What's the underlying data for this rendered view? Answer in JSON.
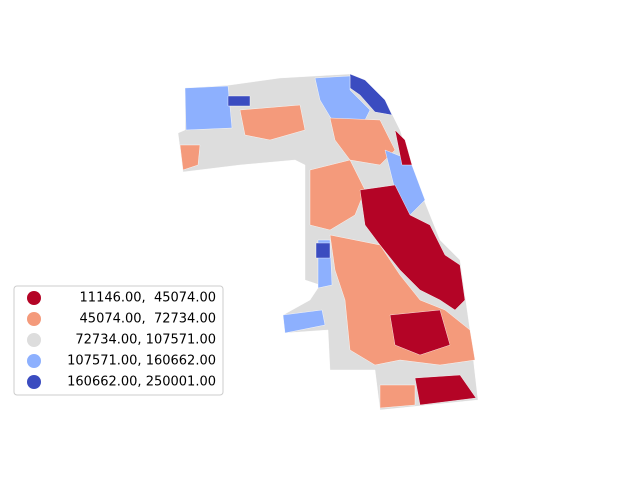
{
  "legend": {
    "items": [
      {
        "label": "11146.00,  45074.00",
        "color": "#b40426"
      },
      {
        "label": "45074.00,  72734.00",
        "color": "#f49a7b"
      },
      {
        "label": "72734.00, 107571.00",
        "color": "#dddddd"
      },
      {
        "label": "107571.00, 160662.00",
        "color": "#8db0fe"
      },
      {
        "label": "160662.00, 250001.00",
        "color": "#3b4cc0"
      }
    ]
  }
}
